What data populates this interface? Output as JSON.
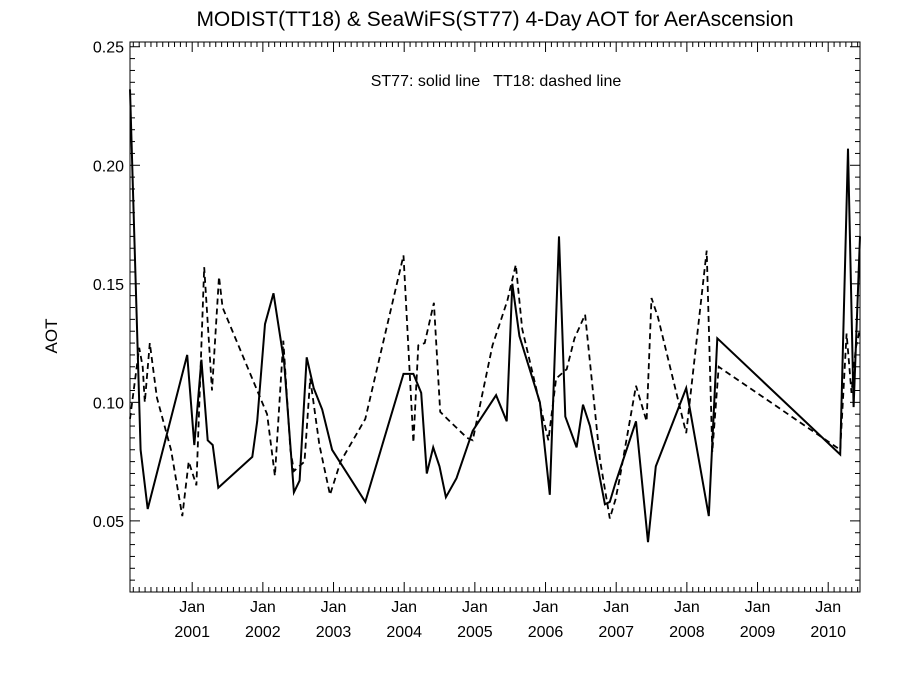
{
  "chart_data": {
    "type": "line",
    "title": "MODIST(TT18) & SeaWiFS(ST77) 4-Day AOT for AerAscension",
    "xlabel": "",
    "ylabel": "AOT",
    "annotation": "ST77: solid line   TT18: dashed line",
    "xlim": [
      2000.12,
      2010.45
    ],
    "ylim": [
      0.02,
      0.252
    ],
    "y_ticks": [
      {
        "value": 0.05,
        "label": "0.05"
      },
      {
        "value": 0.1,
        "label": "0.10"
      },
      {
        "value": 0.15,
        "label": "0.15"
      },
      {
        "value": 0.2,
        "label": "0.20"
      },
      {
        "value": 0.25,
        "label": "0.25"
      }
    ],
    "x_ticks": [
      {
        "value": 2001.0,
        "month": "Jan",
        "year": "2001"
      },
      {
        "value": 2002.0,
        "month": "Jan",
        "year": "2002"
      },
      {
        "value": 2003.0,
        "month": "Jan",
        "year": "2003"
      },
      {
        "value": 2004.0,
        "month": "Jan",
        "year": "2004"
      },
      {
        "value": 2005.0,
        "month": "Jan",
        "year": "2005"
      },
      {
        "value": 2006.0,
        "month": "Jan",
        "year": "2006"
      },
      {
        "value": 2007.0,
        "month": "Jan",
        "year": "2007"
      },
      {
        "value": 2008.0,
        "month": "Jan",
        "year": "2008"
      },
      {
        "value": 2009.0,
        "month": "Jan",
        "year": "2009"
      },
      {
        "value": 2010.0,
        "month": "Jan",
        "year": "2010"
      }
    ],
    "series": [
      {
        "name": "ST77",
        "style": "solid",
        "color": "#000000",
        "x": [
          2000.12,
          2000.27,
          2000.37,
          2000.93,
          2001.03,
          2001.13,
          2001.22,
          2001.29,
          2001.37,
          2001.85,
          2001.92,
          2002.03,
          2002.15,
          2002.3,
          2002.44,
          2002.52,
          2002.62,
          2002.72,
          2002.84,
          2002.98,
          2003.45,
          2003.99,
          2004.13,
          2004.24,
          2004.32,
          2004.41,
          2004.5,
          2004.59,
          2004.74,
          2004.97,
          2005.3,
          2005.45,
          2005.53,
          2005.63,
          2005.92,
          2006.06,
          2006.19,
          2006.28,
          2006.44,
          2006.53,
          2006.63,
          2006.84,
          2006.91,
          2006.99,
          2007.28,
          2007.45,
          2007.56,
          2007.99,
          2008.31,
          2008.43,
          2010.17,
          2010.28,
          2010.36,
          2010.45
        ],
        "y": [
          0.232,
          0.08,
          0.055,
          0.12,
          0.082,
          0.118,
          0.084,
          0.082,
          0.064,
          0.077,
          0.092,
          0.133,
          0.146,
          0.117,
          0.062,
          0.067,
          0.119,
          0.106,
          0.097,
          0.08,
          0.058,
          0.112,
          0.112,
          0.104,
          0.07,
          0.081,
          0.073,
          0.06,
          0.068,
          0.088,
          0.103,
          0.092,
          0.15,
          0.128,
          0.1,
          0.061,
          0.17,
          0.094,
          0.081,
          0.099,
          0.09,
          0.057,
          0.058,
          0.066,
          0.092,
          0.041,
          0.073,
          0.106,
          0.052,
          0.127,
          0.078,
          0.207,
          0.098,
          0.17
        ]
      },
      {
        "name": "TT18",
        "style": "dashed",
        "color": "#000000",
        "x": [
          2000.12,
          2000.25,
          2000.3,
          2000.33,
          2000.4,
          2000.5,
          2000.7,
          2000.86,
          2000.95,
          2001.06,
          2001.17,
          2001.28,
          2001.38,
          2001.43,
          2002.06,
          2002.17,
          2002.29,
          2002.39,
          2002.44,
          2002.59,
          2002.67,
          2002.8,
          2002.95,
          2003.1,
          2003.45,
          2003.7,
          2003.99,
          2004.13,
          2004.2,
          2004.29,
          2004.42,
          2004.51,
          2004.61,
          2004.89,
          2004.97,
          2005.25,
          2005.35,
          2005.46,
          2005.58,
          2005.67,
          2006.04,
          2006.15,
          2006.3,
          2006.41,
          2006.56,
          2006.77,
          2006.91,
          2006.99,
          2007.05,
          2007.28,
          2007.43,
          2007.5,
          2007.59,
          2007.99,
          2008.28,
          2008.36,
          2008.45,
          2010.17,
          2010.26,
          2010.33,
          2010.39,
          2010.45
        ],
        "y": [
          0.093,
          0.123,
          0.115,
          0.1,
          0.125,
          0.102,
          0.08,
          0.052,
          0.075,
          0.065,
          0.157,
          0.105,
          0.153,
          0.14,
          0.095,
          0.069,
          0.126,
          0.08,
          0.071,
          0.075,
          0.11,
          0.082,
          0.061,
          0.075,
          0.093,
          0.125,
          0.162,
          0.083,
          0.124,
          0.125,
          0.142,
          0.096,
          0.093,
          0.085,
          0.084,
          0.124,
          0.133,
          0.143,
          0.158,
          0.131,
          0.084,
          0.11,
          0.114,
          0.127,
          0.137,
          0.076,
          0.051,
          0.059,
          0.068,
          0.107,
          0.092,
          0.144,
          0.136,
          0.087,
          0.164,
          0.079,
          0.115,
          0.08,
          0.129,
          0.104,
          0.123,
          0.131
        ]
      }
    ]
  }
}
